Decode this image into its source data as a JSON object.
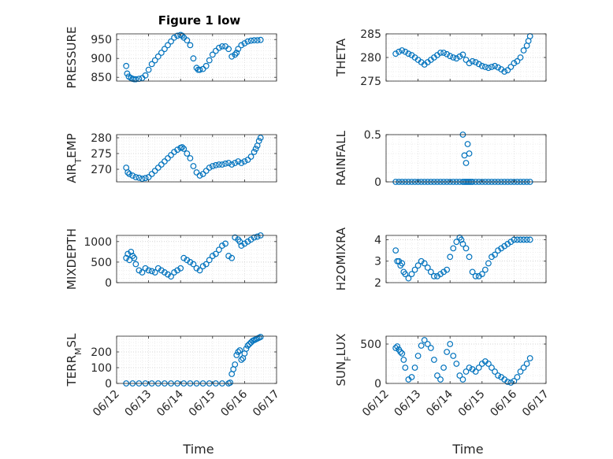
{
  "figure": {
    "title": "Figure 1 low",
    "xlabel": "Time",
    "marker_color": "#0072bd"
  },
  "chart_data": [
    {
      "type": "scatter",
      "id": "pressure",
      "ylabel": "PRESSURE",
      "ylim": [
        840,
        965
      ],
      "yticks": [
        850,
        900,
        950
      ],
      "xlim": [
        0,
        5
      ],
      "xticks": [
        "06/12",
        "06/13",
        "06/14",
        "06/15",
        "06/16",
        "06/17"
      ],
      "grid": true,
      "x": [
        0.3,
        0.33,
        0.38,
        0.45,
        0.5,
        0.55,
        0.6,
        0.7,
        0.8,
        0.9,
        1.0,
        1.1,
        1.2,
        1.3,
        1.4,
        1.5,
        1.6,
        1.7,
        1.8,
        1.9,
        2.0,
        2.05,
        2.1,
        2.2,
        2.3,
        2.4,
        2.5,
        2.55,
        2.6,
        2.7,
        2.8,
        2.9,
        3.0,
        3.1,
        3.2,
        3.3,
        3.4,
        3.5,
        3.6,
        3.7,
        3.75,
        3.8,
        3.9,
        4.0,
        4.1,
        4.2,
        4.3,
        4.4,
        4.5
      ],
      "y": [
        880,
        860,
        852,
        848,
        846,
        845,
        845,
        846,
        848,
        855,
        870,
        885,
        895,
        905,
        915,
        925,
        935,
        945,
        955,
        960,
        962,
        960,
        955,
        948,
        935,
        900,
        875,
        870,
        870,
        872,
        880,
        895,
        910,
        920,
        928,
        932,
        932,
        925,
        905,
        910,
        915,
        925,
        935,
        940,
        945,
        947,
        948,
        948,
        949
      ]
    },
    {
      "type": "scatter",
      "id": "theta",
      "ylabel": "THETA",
      "ylim": [
        275,
        285
      ],
      "yticks": [
        275,
        280,
        285
      ],
      "xlim": [
        0,
        5
      ],
      "xticks": [
        "06/12",
        "06/13",
        "06/14",
        "06/15",
        "06/16",
        "06/17"
      ],
      "grid": true,
      "x": [
        0.3,
        0.4,
        0.5,
        0.6,
        0.7,
        0.8,
        0.9,
        1.0,
        1.1,
        1.2,
        1.3,
        1.4,
        1.5,
        1.6,
        1.7,
        1.8,
        1.9,
        2.0,
        2.1,
        2.2,
        2.3,
        2.4,
        2.5,
        2.6,
        2.7,
        2.8,
        2.9,
        3.0,
        3.1,
        3.2,
        3.3,
        3.4,
        3.5,
        3.6,
        3.7,
        3.8,
        3.9,
        4.0,
        4.1,
        4.2,
        4.3,
        4.4,
        4.45,
        4.5
      ],
      "y": [
        280.8,
        281.2,
        281.5,
        281.2,
        280.8,
        280.5,
        280.0,
        279.5,
        279.0,
        278.5,
        279.0,
        279.5,
        280.0,
        280.5,
        281.0,
        281.0,
        280.7,
        280.3,
        280.0,
        279.8,
        280.2,
        280.6,
        279.5,
        278.8,
        279.2,
        279.0,
        278.6,
        278.2,
        278.0,
        277.8,
        278.0,
        278.2,
        277.9,
        277.5,
        277.0,
        277.3,
        278.0,
        278.8,
        279.2,
        280.0,
        281.5,
        282.5,
        283.5,
        284.5
      ]
    },
    {
      "type": "scatter",
      "id": "air_temp",
      "ylabel": "AIR_TEMP",
      "ylabel_main": "AIR",
      "ylabel_sub": "T",
      "ylabel_rest": "EMP",
      "ylim": [
        266,
        281
      ],
      "yticks": [
        270,
        275,
        280
      ],
      "xlim": [
        0,
        5
      ],
      "xticks": [
        "06/12",
        "06/13",
        "06/14",
        "06/15",
        "06/16",
        "06/17"
      ],
      "grid": true,
      "x": [
        0.3,
        0.35,
        0.4,
        0.5,
        0.6,
        0.7,
        0.8,
        0.9,
        1.0,
        1.1,
        1.2,
        1.3,
        1.4,
        1.5,
        1.6,
        1.7,
        1.8,
        1.9,
        2.0,
        2.05,
        2.1,
        2.2,
        2.3,
        2.4,
        2.5,
        2.6,
        2.7,
        2.8,
        2.9,
        3.0,
        3.1,
        3.2,
        3.3,
        3.4,
        3.5,
        3.6,
        3.7,
        3.8,
        3.9,
        4.0,
        4.1,
        4.2,
        4.3,
        4.35,
        4.4,
        4.45,
        4.5
      ],
      "y": [
        270.5,
        269.0,
        268.5,
        268.0,
        267.5,
        267.3,
        267.0,
        267.2,
        267.5,
        268.5,
        269.5,
        270.5,
        271.5,
        272.5,
        273.5,
        274.5,
        275.5,
        276.2,
        276.8,
        277.0,
        276.5,
        275.0,
        273.5,
        271.0,
        269.0,
        268.0,
        268.5,
        269.5,
        270.5,
        271.0,
        271.3,
        271.5,
        271.5,
        271.8,
        272.0,
        271.5,
        272.0,
        272.5,
        272.0,
        272.5,
        273.0,
        274.0,
        275.5,
        276.5,
        277.5,
        279.0,
        280.0
      ]
    },
    {
      "type": "scatter",
      "id": "rainfall",
      "ylabel": "RAINFALL",
      "ylim": [
        0,
        0.5
      ],
      "yticks": [
        0,
        0.5
      ],
      "xlim": [
        0,
        5
      ],
      "xticks": [
        "06/12",
        "06/13",
        "06/14",
        "06/15",
        "06/16",
        "06/17"
      ],
      "grid": true,
      "x": [
        0.3,
        0.4,
        0.5,
        0.6,
        0.7,
        0.8,
        0.9,
        1.0,
        1.1,
        1.2,
        1.3,
        1.4,
        1.5,
        1.6,
        1.7,
        1.8,
        1.9,
        2.0,
        2.1,
        2.2,
        2.3,
        2.4,
        2.45,
        2.5,
        2.55,
        2.6,
        2.65,
        2.7,
        2.8,
        2.9,
        3.0,
        3.1,
        3.2,
        3.3,
        3.4,
        3.5,
        3.6,
        3.7,
        3.8,
        3.9,
        4.0,
        4.1,
        4.2,
        4.3,
        4.4,
        4.5,
        2.4,
        2.45,
        2.5,
        2.55,
        2.6
      ],
      "y": [
        0,
        0,
        0,
        0,
        0,
        0,
        0,
        0,
        0,
        0,
        0,
        0,
        0,
        0,
        0,
        0,
        0,
        0,
        0,
        0,
        0,
        0,
        0,
        0,
        0,
        0,
        0,
        0,
        0,
        0,
        0,
        0,
        0,
        0,
        0,
        0,
        0,
        0,
        0,
        0,
        0,
        0,
        0,
        0,
        0,
        0,
        0.5,
        0.28,
        0.2,
        0.4,
        0.3
      ]
    },
    {
      "type": "scatter",
      "id": "mixdepth",
      "ylabel": "MIXDEPTH",
      "ylim": [
        0,
        1150
      ],
      "yticks": [
        0,
        500,
        1000
      ],
      "xlim": [
        0,
        5
      ],
      "xticks": [
        "06/12",
        "06/13",
        "06/14",
        "06/15",
        "06/16",
        "06/17"
      ],
      "grid": true,
      "x": [
        0.3,
        0.35,
        0.4,
        0.45,
        0.5,
        0.55,
        0.6,
        0.7,
        0.8,
        0.9,
        1.0,
        1.1,
        1.2,
        1.3,
        1.4,
        1.5,
        1.6,
        1.7,
        1.8,
        1.9,
        2.0,
        2.1,
        2.2,
        2.3,
        2.4,
        2.5,
        2.6,
        2.7,
        2.8,
        2.9,
        3.0,
        3.1,
        3.2,
        3.3,
        3.4,
        3.5,
        3.6,
        3.7,
        3.8,
        3.85,
        3.9,
        4.0,
        4.1,
        4.2,
        4.3,
        4.4,
        4.5
      ],
      "y": [
        600,
        700,
        550,
        750,
        650,
        600,
        450,
        300,
        250,
        350,
        300,
        280,
        250,
        350,
        300,
        250,
        200,
        150,
        250,
        300,
        350,
        600,
        550,
        500,
        450,
        350,
        300,
        400,
        450,
        550,
        650,
        700,
        800,
        900,
        950,
        650,
        600,
        1100,
        1050,
        1000,
        900,
        950,
        1000,
        1050,
        1100,
        1120,
        1150
      ]
    },
    {
      "type": "scatter",
      "id": "h2omixra",
      "ylabel": "H2OMIXRA",
      "ylim": [
        2,
        4.2
      ],
      "yticks": [
        2,
        3,
        4
      ],
      "xlim": [
        0,
        5
      ],
      "xticks": [
        "06/12",
        "06/13",
        "06/14",
        "06/15",
        "06/16",
        "06/17"
      ],
      "grid": true,
      "x": [
        0.3,
        0.35,
        0.4,
        0.45,
        0.5,
        0.55,
        0.6,
        0.7,
        0.8,
        0.9,
        1.0,
        1.1,
        1.2,
        1.3,
        1.4,
        1.5,
        1.6,
        1.7,
        1.8,
        1.9,
        2.0,
        2.1,
        2.2,
        2.3,
        2.35,
        2.4,
        2.5,
        2.6,
        2.7,
        2.8,
        2.9,
        3.0,
        3.1,
        3.2,
        3.3,
        3.4,
        3.5,
        3.6,
        3.7,
        3.8,
        3.9,
        4.0,
        4.1,
        4.2,
        4.3,
        4.4,
        4.5
      ],
      "y": [
        3.5,
        3.0,
        3.0,
        2.8,
        2.9,
        2.5,
        2.4,
        2.2,
        2.4,
        2.6,
        2.8,
        3.0,
        2.9,
        2.7,
        2.5,
        2.3,
        2.3,
        2.4,
        2.5,
        2.6,
        3.2,
        3.6,
        3.9,
        4.1,
        4.0,
        3.8,
        3.6,
        3.2,
        2.5,
        2.3,
        2.3,
        2.4,
        2.6,
        2.9,
        3.2,
        3.3,
        3.5,
        3.6,
        3.7,
        3.8,
        3.9,
        4.0,
        4.0,
        4.0,
        4.0,
        4.0,
        4.0
      ]
    },
    {
      "type": "scatter",
      "id": "terr_msl",
      "ylabel": "TERR_MSL",
      "ylabel_main": "TERR",
      "ylabel_sub": "M",
      "ylabel_rest": "SL",
      "ylim": [
        0,
        300
      ],
      "yticks": [
        0,
        100,
        200
      ],
      "xlim": [
        0,
        5
      ],
      "xticks": [
        "06/12",
        "06/13",
        "06/14",
        "06/15",
        "06/16",
        "06/17"
      ],
      "grid": true,
      "x": [
        0.3,
        0.5,
        0.7,
        0.9,
        1.1,
        1.3,
        1.5,
        1.7,
        1.9,
        2.1,
        2.3,
        2.5,
        2.7,
        2.9,
        3.1,
        3.3,
        3.5,
        3.55,
        3.6,
        3.65,
        3.7,
        3.75,
        3.8,
        3.85,
        3.9,
        3.95,
        4.0,
        4.05,
        4.1,
        4.15,
        4.2,
        4.25,
        4.3,
        4.35,
        4.4,
        4.45,
        4.5
      ],
      "y": [
        0,
        0,
        0,
        0,
        0,
        0,
        0,
        0,
        0,
        0,
        0,
        0,
        0,
        0,
        0,
        0,
        0,
        5,
        60,
        90,
        120,
        180,
        200,
        210,
        150,
        160,
        190,
        220,
        240,
        250,
        260,
        270,
        275,
        280,
        285,
        290,
        295
      ]
    },
    {
      "type": "scatter",
      "id": "sun_flux",
      "ylabel": "SUN_FLUX",
      "ylabel_main": "SUN",
      "ylabel_sub": "F",
      "ylabel_rest": "LUX",
      "ylim": [
        0,
        600
      ],
      "yticks": [
        0,
        500
      ],
      "xlim": [
        0,
        5
      ],
      "xticks": [
        "06/12",
        "06/13",
        "06/14",
        "06/15",
        "06/16",
        "06/17"
      ],
      "grid": true,
      "x": [
        0.3,
        0.35,
        0.4,
        0.45,
        0.5,
        0.55,
        0.6,
        0.7,
        0.8,
        0.9,
        1.0,
        1.1,
        1.2,
        1.3,
        1.4,
        1.5,
        1.6,
        1.7,
        1.8,
        1.9,
        2.0,
        2.1,
        2.2,
        2.3,
        2.4,
        2.5,
        2.6,
        2.7,
        2.8,
        2.9,
        3.0,
        3.1,
        3.2,
        3.3,
        3.4,
        3.5,
        3.6,
        3.7,
        3.8,
        3.9,
        4.0,
        4.1,
        4.2,
        4.3,
        4.4,
        4.5
      ],
      "y": [
        450,
        470,
        430,
        400,
        380,
        300,
        200,
        50,
        80,
        200,
        350,
        480,
        550,
        500,
        450,
        300,
        100,
        50,
        200,
        400,
        500,
        350,
        250,
        100,
        50,
        150,
        200,
        180,
        150,
        200,
        250,
        280,
        250,
        200,
        150,
        100,
        80,
        50,
        20,
        10,
        30,
        80,
        150,
        200,
        250,
        320
      ]
    }
  ]
}
